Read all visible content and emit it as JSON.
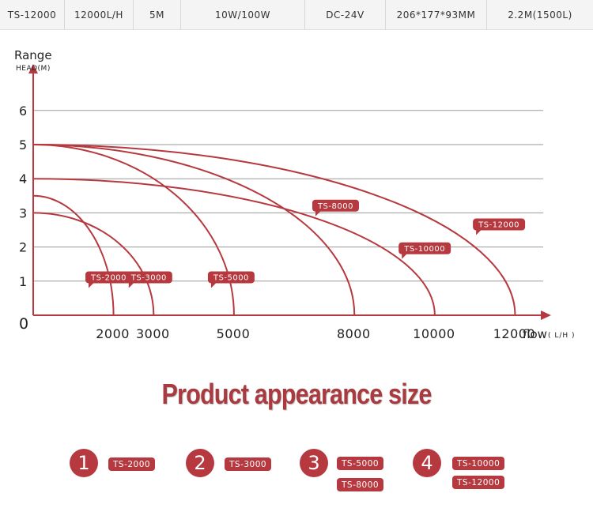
{
  "specs": [
    "TS-12000",
    "12000L/H",
    "5M",
    "10W/100W",
    "DC-24V",
    "206*177*93MM",
    "2.2M(1500L)"
  ],
  "chart_data": {
    "type": "line",
    "title": "",
    "ylabel": "Range",
    "ylabel_sub": "HEAD(M)",
    "xlabel": "flow",
    "xlabel_unit": "( L/H )",
    "x_origin_label": "0",
    "xticks": [
      2000,
      3000,
      5000,
      8000,
      10000,
      12000
    ],
    "yticks": [
      1,
      2,
      3,
      4,
      5,
      6
    ],
    "xlim": [
      0,
      12700
    ],
    "ylim": [
      0,
      6.5
    ],
    "grid": true,
    "series": [
      {
        "name": "TS-2000",
        "head_max": 3.5,
        "flow_max": 2000,
        "label_at": [
          1300,
          1.1
        ]
      },
      {
        "name": "TS-3000",
        "head_max": 3.0,
        "flow_max": 3000,
        "label_at": [
          2300,
          1.1
        ]
      },
      {
        "name": "TS-5000",
        "head_max": 5.0,
        "flow_max": 5000,
        "label_at": [
          4350,
          1.1
        ]
      },
      {
        "name": "TS-8000",
        "head_max": 5.0,
        "flow_max": 8000,
        "label_at": [
          6950,
          3.2
        ]
      },
      {
        "name": "TS-10000",
        "head_max": 4.0,
        "flow_max": 10000,
        "label_at": [
          9100,
          1.95
        ]
      },
      {
        "name": "TS-12000",
        "head_max": 5.0,
        "flow_max": 12000,
        "label_at": [
          10950,
          2.65
        ]
      }
    ],
    "line_color": "#b6393f"
  },
  "section_title": "Product appearance size",
  "groups": [
    {
      "number": "1",
      "models": [
        "TS-2000"
      ]
    },
    {
      "number": "2",
      "models": [
        "TS-3000"
      ]
    },
    {
      "number": "3",
      "models": [
        "TS-5000",
        "TS-8000"
      ]
    },
    {
      "number": "4",
      "models": [
        "TS-10000",
        "TS-12000"
      ]
    }
  ]
}
